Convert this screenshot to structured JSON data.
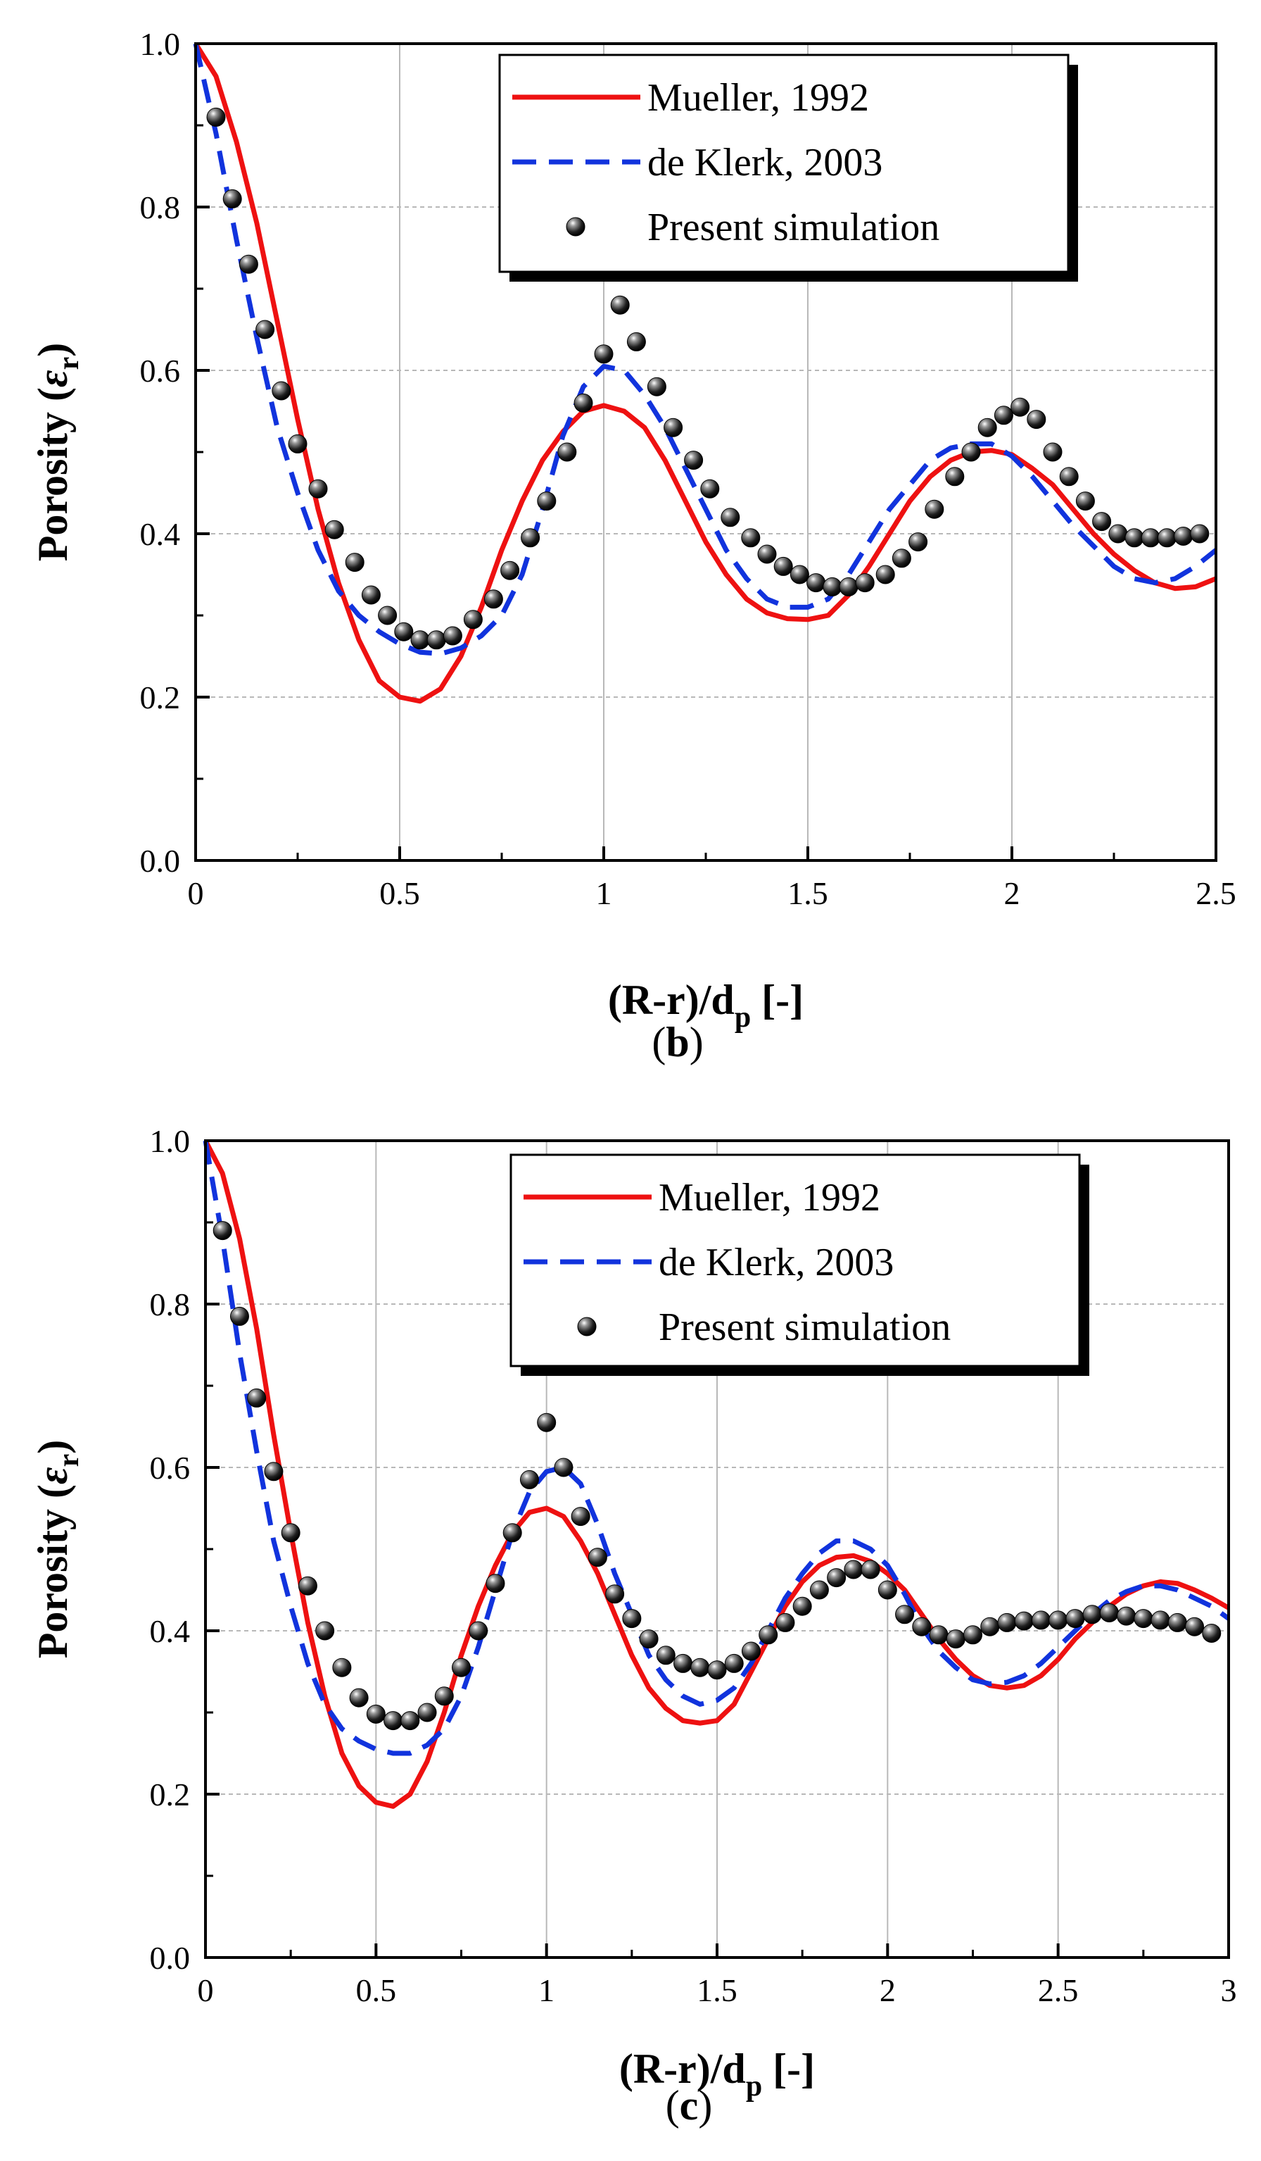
{
  "chart_data": [
    {
      "type": "line",
      "panel_label": "b",
      "xlabel": "(R-r)/d",
      "xlabel_sub": "p",
      "xlabel_suffix": "[-]",
      "ylabel": "Porosity (",
      "ylabel_symbol": "ε",
      "ylabel_sub": "r",
      "ylabel_close": ")",
      "xlim": [
        0,
        2.5
      ],
      "ylim": [
        0,
        1.0
      ],
      "xticks": [
        0,
        0.5,
        1,
        1.5,
        2,
        2.5
      ],
      "xtick_labels": [
        "0",
        "0.5",
        "1",
        "1.5",
        "2",
        "2.5"
      ],
      "yticks": [
        0,
        0.2,
        0.4,
        0.6,
        0.8,
        1.0
      ],
      "ytick_labels": [
        "0.0",
        "0.2",
        "0.4",
        "0.6",
        "0.8",
        "1.0"
      ],
      "grid": true,
      "legend_position": "top-right",
      "series": [
        {
          "name": "Mueller, 1992",
          "style": "solid",
          "color": "#ee1111",
          "x": [
            0,
            0.05,
            0.1,
            0.15,
            0.2,
            0.25,
            0.3,
            0.35,
            0.4,
            0.45,
            0.5,
            0.55,
            0.6,
            0.65,
            0.7,
            0.75,
            0.8,
            0.85,
            0.9,
            0.95,
            1.0,
            1.05,
            1.1,
            1.15,
            1.2,
            1.25,
            1.3,
            1.35,
            1.4,
            1.45,
            1.5,
            1.55,
            1.6,
            1.65,
            1.7,
            1.75,
            1.8,
            1.85,
            1.9,
            1.95,
            2.0,
            2.05,
            2.1,
            2.15,
            2.2,
            2.25,
            2.3,
            2.35,
            2.4,
            2.45,
            2.5
          ],
          "y": [
            1.0,
            0.96,
            0.88,
            0.78,
            0.66,
            0.54,
            0.43,
            0.34,
            0.27,
            0.22,
            0.2,
            0.195,
            0.21,
            0.25,
            0.31,
            0.38,
            0.44,
            0.49,
            0.525,
            0.55,
            0.557,
            0.55,
            0.53,
            0.49,
            0.44,
            0.39,
            0.35,
            0.32,
            0.303,
            0.296,
            0.295,
            0.3,
            0.325,
            0.36,
            0.4,
            0.44,
            0.47,
            0.49,
            0.5,
            0.502,
            0.497,
            0.48,
            0.46,
            0.43,
            0.4,
            0.375,
            0.355,
            0.34,
            0.333,
            0.335,
            0.345
          ]
        },
        {
          "name": "de Klerk, 2003",
          "style": "dashed",
          "color": "#1133dd",
          "x": [
            0,
            0.05,
            0.1,
            0.15,
            0.2,
            0.25,
            0.3,
            0.35,
            0.4,
            0.45,
            0.5,
            0.55,
            0.6,
            0.65,
            0.7,
            0.75,
            0.8,
            0.85,
            0.9,
            0.95,
            1.0,
            1.05,
            1.1,
            1.15,
            1.2,
            1.25,
            1.3,
            1.35,
            1.4,
            1.45,
            1.5,
            1.55,
            1.6,
            1.65,
            1.7,
            1.75,
            1.8,
            1.85,
            1.9,
            1.95,
            2.0,
            2.05,
            2.1,
            2.15,
            2.2,
            2.25,
            2.3,
            2.35,
            2.4,
            2.45,
            2.5
          ],
          "y": [
            1.0,
            0.89,
            0.76,
            0.64,
            0.53,
            0.45,
            0.38,
            0.33,
            0.3,
            0.28,
            0.265,
            0.255,
            0.253,
            0.26,
            0.275,
            0.3,
            0.35,
            0.43,
            0.52,
            0.58,
            0.605,
            0.6,
            0.57,
            0.53,
            0.48,
            0.43,
            0.38,
            0.345,
            0.32,
            0.31,
            0.31,
            0.32,
            0.35,
            0.39,
            0.43,
            0.46,
            0.49,
            0.505,
            0.51,
            0.51,
            0.495,
            0.47,
            0.44,
            0.41,
            0.385,
            0.36,
            0.345,
            0.34,
            0.345,
            0.36,
            0.38
          ]
        },
        {
          "name": "Present simulation",
          "style": "markers",
          "color": "#111111",
          "x": [
            0.05,
            0.09,
            0.13,
            0.17,
            0.21,
            0.25,
            0.3,
            0.34,
            0.39,
            0.43,
            0.47,
            0.51,
            0.55,
            0.59,
            0.63,
            0.68,
            0.73,
            0.77,
            0.82,
            0.86,
            0.91,
            0.95,
            1.0,
            1.04,
            1.08,
            1.13,
            1.17,
            1.22,
            1.26,
            1.31,
            1.36,
            1.4,
            1.44,
            1.48,
            1.52,
            1.56,
            1.6,
            1.64,
            1.69,
            1.73,
            1.77,
            1.81,
            1.86,
            1.9,
            1.94,
            1.98,
            2.02,
            2.06,
            2.1,
            2.14,
            2.18,
            2.22,
            2.26,
            2.3,
            2.34,
            2.38,
            2.42,
            2.46
          ],
          "y": [
            0.91,
            0.81,
            0.73,
            0.65,
            0.575,
            0.51,
            0.455,
            0.405,
            0.365,
            0.325,
            0.3,
            0.28,
            0.27,
            0.27,
            0.275,
            0.295,
            0.32,
            0.355,
            0.395,
            0.44,
            0.5,
            0.56,
            0.62,
            0.68,
            0.635,
            0.58,
            0.53,
            0.49,
            0.455,
            0.42,
            0.395,
            0.375,
            0.36,
            0.35,
            0.34,
            0.335,
            0.335,
            0.34,
            0.35,
            0.37,
            0.39,
            0.43,
            0.47,
            0.5,
            0.53,
            0.545,
            0.555,
            0.54,
            0.5,
            0.47,
            0.44,
            0.415,
            0.4,
            0.395,
            0.395,
            0.395,
            0.397,
            0.4
          ]
        }
      ]
    },
    {
      "type": "line",
      "panel_label": "c",
      "xlabel": "(R-r)/d",
      "xlabel_sub": "p",
      "xlabel_suffix": "[-]",
      "ylabel": "Porosity (",
      "ylabel_symbol": "ε",
      "ylabel_sub": "r",
      "ylabel_close": ")",
      "xlim": [
        0,
        3
      ],
      "ylim": [
        0,
        1.0
      ],
      "xticks": [
        0,
        0.5,
        1,
        1.5,
        2,
        2.5,
        3
      ],
      "xtick_labels": [
        "0",
        "0.5",
        "1",
        "1.5",
        "2",
        "2.5",
        "3"
      ],
      "yticks": [
        0,
        0.2,
        0.4,
        0.6,
        0.8,
        1.0
      ],
      "ytick_labels": [
        "0.0",
        "0.2",
        "0.4",
        "0.6",
        "0.8",
        "1.0"
      ],
      "grid": true,
      "legend_position": "top-right",
      "series": [
        {
          "name": "Mueller, 1992",
          "style": "solid",
          "color": "#ee1111",
          "x": [
            0,
            0.05,
            0.1,
            0.15,
            0.2,
            0.25,
            0.3,
            0.35,
            0.4,
            0.45,
            0.5,
            0.55,
            0.6,
            0.65,
            0.7,
            0.75,
            0.8,
            0.85,
            0.9,
            0.95,
            1.0,
            1.05,
            1.1,
            1.15,
            1.2,
            1.25,
            1.3,
            1.35,
            1.4,
            1.45,
            1.5,
            1.55,
            1.6,
            1.65,
            1.7,
            1.75,
            1.8,
            1.85,
            1.9,
            1.95,
            2.0,
            2.05,
            2.1,
            2.15,
            2.2,
            2.25,
            2.3,
            2.35,
            2.4,
            2.45,
            2.5,
            2.55,
            2.6,
            2.65,
            2.7,
            2.75,
            2.8,
            2.85,
            2.9,
            2.95,
            3.0
          ],
          "y": [
            1.0,
            0.96,
            0.88,
            0.77,
            0.64,
            0.52,
            0.41,
            0.32,
            0.25,
            0.21,
            0.19,
            0.185,
            0.2,
            0.24,
            0.3,
            0.37,
            0.43,
            0.48,
            0.52,
            0.545,
            0.55,
            0.54,
            0.51,
            0.47,
            0.42,
            0.37,
            0.33,
            0.305,
            0.29,
            0.287,
            0.29,
            0.31,
            0.35,
            0.39,
            0.43,
            0.46,
            0.48,
            0.49,
            0.492,
            0.485,
            0.47,
            0.45,
            0.42,
            0.39,
            0.365,
            0.345,
            0.333,
            0.33,
            0.333,
            0.345,
            0.365,
            0.39,
            0.41,
            0.43,
            0.445,
            0.455,
            0.46,
            0.458,
            0.45,
            0.44,
            0.428
          ]
        },
        {
          "name": "de Klerk, 2003",
          "style": "dashed",
          "color": "#1133dd",
          "x": [
            0,
            0.05,
            0.1,
            0.15,
            0.2,
            0.25,
            0.3,
            0.35,
            0.4,
            0.45,
            0.5,
            0.55,
            0.6,
            0.65,
            0.7,
            0.75,
            0.8,
            0.85,
            0.9,
            0.95,
            1.0,
            1.05,
            1.1,
            1.15,
            1.2,
            1.25,
            1.3,
            1.35,
            1.4,
            1.45,
            1.5,
            1.55,
            1.6,
            1.65,
            1.7,
            1.75,
            1.8,
            1.85,
            1.9,
            1.95,
            2.0,
            2.05,
            2.1,
            2.15,
            2.2,
            2.25,
            2.3,
            2.35,
            2.4,
            2.45,
            2.5,
            2.55,
            2.6,
            2.65,
            2.7,
            2.75,
            2.8,
            2.85,
            2.9,
            2.95,
            3.0
          ],
          "y": [
            1.0,
            0.88,
            0.74,
            0.62,
            0.51,
            0.43,
            0.36,
            0.31,
            0.28,
            0.265,
            0.255,
            0.25,
            0.25,
            0.26,
            0.28,
            0.32,
            0.38,
            0.45,
            0.52,
            0.57,
            0.595,
            0.6,
            0.58,
            0.53,
            0.47,
            0.42,
            0.37,
            0.34,
            0.32,
            0.31,
            0.315,
            0.33,
            0.36,
            0.4,
            0.44,
            0.47,
            0.495,
            0.51,
            0.51,
            0.5,
            0.48,
            0.445,
            0.405,
            0.375,
            0.355,
            0.34,
            0.335,
            0.337,
            0.345,
            0.36,
            0.38,
            0.4,
            0.42,
            0.437,
            0.448,
            0.455,
            0.455,
            0.45,
            0.44,
            0.43,
            0.415
          ]
        },
        {
          "name": "Present simulation",
          "style": "markers",
          "color": "#111111",
          "x": [
            0.05,
            0.1,
            0.15,
            0.2,
            0.25,
            0.3,
            0.35,
            0.4,
            0.45,
            0.5,
            0.55,
            0.6,
            0.65,
            0.7,
            0.75,
            0.8,
            0.85,
            0.9,
            0.95,
            1.0,
            1.05,
            1.1,
            1.15,
            1.2,
            1.25,
            1.3,
            1.35,
            1.4,
            1.45,
            1.5,
            1.55,
            1.6,
            1.65,
            1.7,
            1.75,
            1.8,
            1.85,
            1.9,
            1.95,
            2.0,
            2.05,
            2.1,
            2.15,
            2.2,
            2.25,
            2.3,
            2.35,
            2.4,
            2.45,
            2.5,
            2.55,
            2.6,
            2.65,
            2.7,
            2.75,
            2.8,
            2.85,
            2.9,
            2.95
          ],
          "y": [
            0.89,
            0.785,
            0.685,
            0.595,
            0.52,
            0.455,
            0.4,
            0.355,
            0.318,
            0.298,
            0.29,
            0.29,
            0.3,
            0.32,
            0.355,
            0.4,
            0.458,
            0.52,
            0.585,
            0.655,
            0.6,
            0.54,
            0.49,
            0.445,
            0.415,
            0.39,
            0.37,
            0.36,
            0.355,
            0.352,
            0.36,
            0.375,
            0.395,
            0.41,
            0.43,
            0.45,
            0.465,
            0.475,
            0.475,
            0.45,
            0.42,
            0.405,
            0.395,
            0.39,
            0.395,
            0.405,
            0.41,
            0.412,
            0.413,
            0.413,
            0.415,
            0.42,
            0.422,
            0.418,
            0.415,
            0.413,
            0.41,
            0.405,
            0.397
          ]
        }
      ]
    }
  ]
}
